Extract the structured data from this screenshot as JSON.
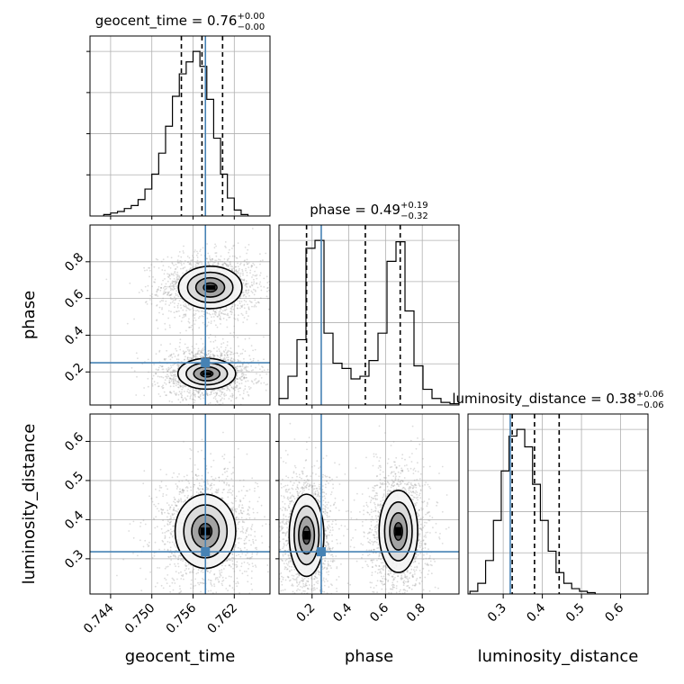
{
  "chart_data": {
    "type": "corner",
    "parameters": [
      {
        "name": "geocent_time",
        "label": "geocent_time",
        "range": [
          0.741,
          0.7672
        ],
        "ticks": [
          0.744,
          0.75,
          0.756,
          0.762
        ],
        "tick_labels": [
          "0.744",
          "0.750",
          "0.756",
          "0.762"
        ],
        "title": {
          "base": "geocent_time = 0.76",
          "plus": "+0.00",
          "minus": "−0.00"
        },
        "truth": 0.7578,
        "quantiles": [
          0.7543,
          0.7573,
          0.7603
        ],
        "hist": {
          "bin_start": 0.743,
          "bin_width": 0.001,
          "counts": [
            1,
            2,
            3,
            5,
            7,
            11,
            18,
            28,
            42,
            60,
            80,
            95,
            103,
            110,
            100,
            78,
            52,
            28,
            12,
            4,
            1
          ]
        }
      },
      {
        "name": "phase",
        "label": "phase",
        "range": [
          0.02,
          1.0
        ],
        "ticks": [
          0.2,
          0.4,
          0.6,
          0.8
        ],
        "tick_labels": [
          "0.2",
          "0.4",
          "0.6",
          "0.8"
        ],
        "title": {
          "base": "phase = 0.49",
          "plus": "+0.19",
          "minus": "−0.32"
        },
        "truth": 0.25,
        "quantiles": [
          0.17,
          0.49,
          0.68
        ],
        "hist": {
          "bin_start": 0.02,
          "bin_width": 0.049,
          "counts": [
            5,
            22,
            50,
            120,
            126,
            55,
            32,
            28,
            20,
            22,
            34,
            55,
            110,
            125,
            72,
            30,
            12,
            5,
            2,
            1
          ]
        }
      },
      {
        "name": "luminosity_distance",
        "label": "luminosity_distance",
        "range": [
          0.21,
          0.67
        ],
        "ticks": [
          0.3,
          0.4,
          0.5,
          0.6
        ],
        "tick_labels": [
          "0.3",
          "0.4",
          "0.5",
          "0.6"
        ],
        "title": {
          "base": "luminosity_distance = 0.38",
          "plus": "+0.06",
          "minus": "−0.06"
        },
        "truth": 0.318,
        "quantiles": [
          0.323,
          0.38,
          0.443
        ],
        "hist": {
          "bin_start": 0.215,
          "bin_width": 0.02,
          "counts": [
            2,
            8,
            25,
            55,
            92,
            118,
            123,
            110,
            82,
            55,
            32,
            16,
            8,
            4,
            2,
            1
          ]
        }
      }
    ],
    "panels_2d": [
      {
        "x": "geocent_time",
        "y": "phase",
        "modes": [
          {
            "cx": 0.7585,
            "cy": 0.66,
            "sx": 0.0022,
            "sy": 0.055,
            "level_scale": [
              1.0,
              0.7,
              0.45,
              0.22
            ]
          },
          {
            "cx": 0.758,
            "cy": 0.19,
            "sx": 0.002,
            "sy": 0.04,
            "level_scale": [
              1.0,
              0.7,
              0.45,
              0.22
            ]
          }
        ]
      },
      {
        "x": "geocent_time",
        "y": "luminosity_distance",
        "modes": [
          {
            "cx": 0.7578,
            "cy": 0.37,
            "sx": 0.0021,
            "sy": 0.045,
            "level_scale": [
              1.0,
              0.7,
              0.45,
              0.22
            ]
          }
        ]
      },
      {
        "x": "phase",
        "y": "luminosity_distance",
        "modes": [
          {
            "cx": 0.17,
            "cy": 0.36,
            "sx": 0.045,
            "sy": 0.05,
            "level_scale": [
              1.0,
              0.7,
              0.45,
              0.22
            ]
          },
          {
            "cx": 0.67,
            "cy": 0.37,
            "sx": 0.05,
            "sy": 0.05,
            "level_scale": [
              1.0,
              0.7,
              0.45,
              0.22
            ]
          }
        ]
      }
    ],
    "truth_color": "#4682b4",
    "quantile_style": "dashed",
    "grid": true
  }
}
